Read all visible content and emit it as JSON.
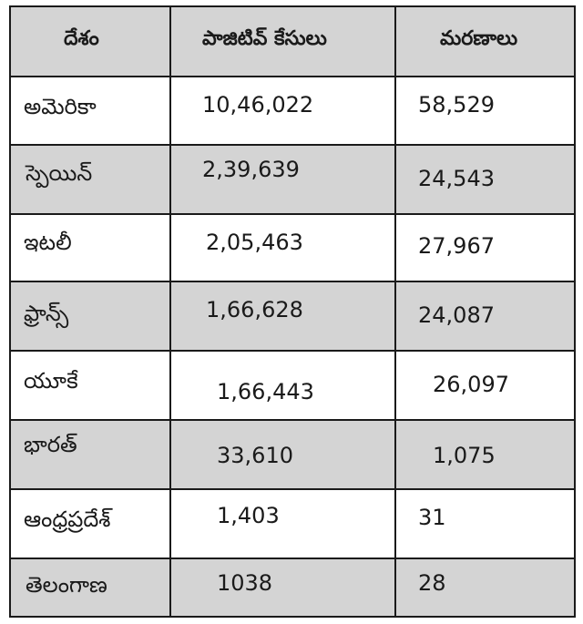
{
  "table": {
    "headers": [
      "దేశం",
      "పాజిటివ్ కేసులు",
      "మరణాలు"
    ],
    "rows": [
      {
        "country": "అమెరికా",
        "cases": "10,46,022",
        "deaths": "58,529"
      },
      {
        "country": "స్పెయిన్",
        "cases": "2,39,639",
        "deaths": "24,543"
      },
      {
        "country": "ఇటలీ",
        "cases": "2,05,463",
        "deaths": "27,967"
      },
      {
        "country": "ఫ్రాన్స్",
        "cases": "1,66,628",
        "deaths": "24,087"
      },
      {
        "country": "యూకే",
        "cases": "1,66,443",
        "deaths": "26,097"
      },
      {
        "country": "భారత్",
        "cases": "33,610",
        "deaths": "1,075"
      },
      {
        "country": "ఆంధ్రప్రదేశ్",
        "cases": "1,403",
        "deaths": "31"
      },
      {
        "country": "తెలంగాణ",
        "cases": "1038",
        "deaths": "28"
      }
    ]
  }
}
